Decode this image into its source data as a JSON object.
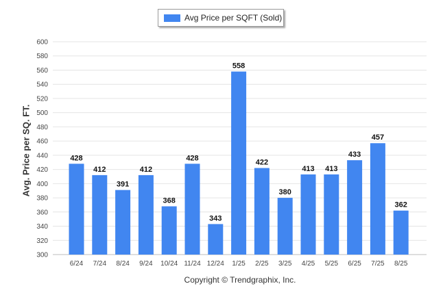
{
  "chart_data": {
    "type": "bar",
    "categories": [
      "6/24",
      "7/24",
      "8/24",
      "9/24",
      "10/24",
      "11/24",
      "12/24",
      "1/25",
      "2/25",
      "3/25",
      "4/25",
      "5/25",
      "6/25",
      "7/25",
      "8/25"
    ],
    "series": [
      {
        "name": "Avg Price per SQFT (Sold)",
        "values": [
          428,
          412,
          391,
          412,
          368,
          428,
          343,
          558,
          422,
          380,
          413,
          413,
          433,
          457,
          362
        ],
        "color": "#4186f0"
      }
    ],
    "ylabel": "Avg. Price per SQ. FT.",
    "xlabel": "",
    "ylim": [
      300,
      600
    ],
    "yticks": [
      300,
      320,
      340,
      360,
      380,
      400,
      420,
      440,
      460,
      480,
      500,
      520,
      540,
      560,
      580,
      600
    ],
    "grid": true,
    "legend_position": "top-center",
    "data_labels": true
  },
  "footer": {
    "copyright": "Copyright © Trendgraphix, Inc."
  }
}
